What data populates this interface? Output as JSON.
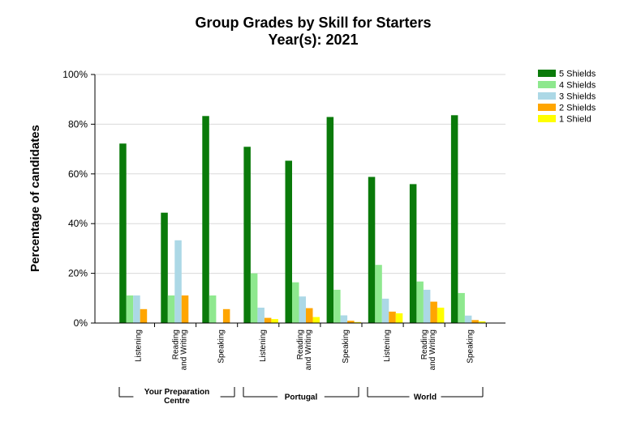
{
  "chart_data": {
    "type": "bar",
    "title": "Group Grades by Skill for Starters",
    "subtitle": "Year(s): 2021",
    "ylabel": "Percentage of candidates",
    "xlabel": "",
    "ylim": [
      0,
      100
    ],
    "yticks": [
      "0%",
      "20%",
      "40%",
      "60%",
      "80%",
      "100%"
    ],
    "grid": true,
    "legend_position": "top-right",
    "categories": [
      [
        "Listening"
      ],
      [
        "Reading",
        "and Writing"
      ],
      [
        "Speaking"
      ],
      [
        "Listening"
      ],
      [
        "Reading",
        "and Writing"
      ],
      [
        "Speaking"
      ],
      [
        "Listening"
      ],
      [
        "Reading",
        "and Writing"
      ],
      [
        "Speaking"
      ]
    ],
    "groups": [
      {
        "label": [
          "Your Preparation",
          "Centre"
        ]
      },
      {
        "label": [
          "Portugal"
        ]
      },
      {
        "label": [
          "World"
        ]
      }
    ],
    "series": [
      {
        "name": "5 Shields",
        "color": "#0a7a0a",
        "values": [
          72.2,
          44.4,
          83.3,
          70.9,
          65.3,
          82.9,
          58.8,
          55.9,
          83.6
        ]
      },
      {
        "name": "4 Shields",
        "color": "#8ee88e",
        "values": [
          11.1,
          11.1,
          11.1,
          20.0,
          16.4,
          13.4,
          23.4,
          16.7,
          12.1
        ]
      },
      {
        "name": "3 Shields",
        "color": "#acd8e6",
        "values": [
          11.1,
          33.3,
          0,
          6.2,
          10.7,
          3.1,
          9.8,
          13.4,
          3.0
        ]
      },
      {
        "name": "2 Shields",
        "color": "#ffa500",
        "values": [
          5.6,
          11.1,
          5.6,
          2.1,
          6.0,
          0.9,
          4.6,
          8.6,
          1.2
        ]
      },
      {
        "name": "1 Shield",
        "color": "#ffff00",
        "values": [
          0,
          0,
          0,
          1.6,
          2.4,
          0.4,
          3.9,
          6.2,
          0.7
        ]
      }
    ]
  }
}
